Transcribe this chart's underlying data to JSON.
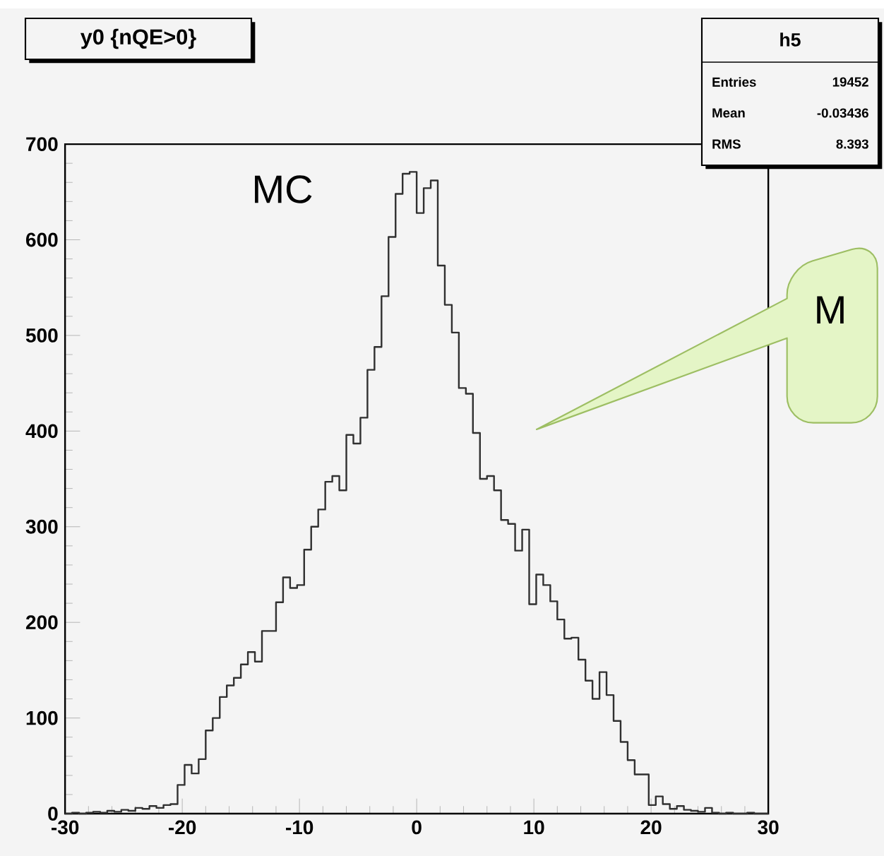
{
  "chart_data": {
    "type": "histogram",
    "title": "y0 {nQE>0}",
    "color": "#303030",
    "bins": [
      -30,
      -29.4,
      -28.8,
      -28.2,
      -27.6,
      -27,
      -26.4,
      -25.8,
      -25.2,
      -24.6,
      -24,
      -23.4,
      -22.8,
      -22.2,
      -21.6,
      -21,
      -20.4,
      -19.8,
      -19.2,
      -18.6,
      -18,
      -17.4,
      -16.8,
      -16.2,
      -15.6,
      -15,
      -14.4,
      -13.8,
      -13.2,
      -12.6,
      -12,
      -11.4,
      -10.8,
      -10.2,
      -9.6,
      -9,
      -8.4,
      -7.8,
      -7.2,
      -6.6,
      -6,
      -5.4,
      -4.8,
      -4.2,
      -3.6,
      -3,
      -2.4,
      -1.8,
      -1.2,
      -0.6,
      0,
      0.6,
      1.2,
      1.8,
      2.4,
      3,
      3.6,
      4.2,
      4.8,
      5.4,
      6,
      6.6,
      7.2,
      7.8,
      8.4,
      9,
      9.6,
      10.2,
      10.8,
      11.4,
      12,
      12.6,
      13.2,
      13.8,
      14.4,
      15,
      15.6,
      16.2,
      16.8,
      17.4,
      18,
      18.6,
      19.2,
      19.8,
      20.4,
      21,
      21.6,
      22.2,
      22.8,
      23.4,
      24,
      24.6,
      25.2,
      25.8,
      26.4,
      27,
      27.6,
      28.2,
      28.8,
      29.4,
      30
    ],
    "values": [
      0,
      1,
      0,
      1,
      2,
      1,
      3,
      2,
      4,
      3,
      6,
      5,
      8,
      6,
      9,
      10,
      30,
      51,
      42,
      57,
      87,
      100,
      122,
      134,
      142,
      156,
      169,
      159,
      191,
      191,
      221,
      247,
      236,
      239,
      276,
      300,
      318,
      347,
      353,
      338,
      396,
      387,
      414,
      464,
      488,
      541,
      603,
      648,
      669,
      671,
      628,
      654,
      662,
      573,
      532,
      503,
      445,
      439,
      398,
      350,
      353,
      338,
      307,
      303,
      275,
      297,
      219,
      250,
      239,
      222,
      203,
      183,
      184,
      161,
      139,
      120,
      148,
      124,
      97,
      75,
      56,
      41,
      41,
      9,
      18,
      10,
      5,
      8,
      4,
      3,
      2,
      6,
      1,
      0,
      1,
      0,
      0,
      1,
      0,
      0
    ],
    "xlim": [
      -30,
      30
    ],
    "xticks": [
      -30,
      -20,
      -10,
      0,
      10,
      20,
      30
    ],
    "ylim": [
      0,
      700
    ],
    "yticks": [
      0,
      100,
      200,
      300,
      400,
      500,
      600,
      700
    ],
    "annotations": [
      "h5",
      "Entries",
      "19452",
      "Mean",
      "-0.03436",
      "RMS",
      "8.393",
      "MC",
      "M"
    ]
  }
}
